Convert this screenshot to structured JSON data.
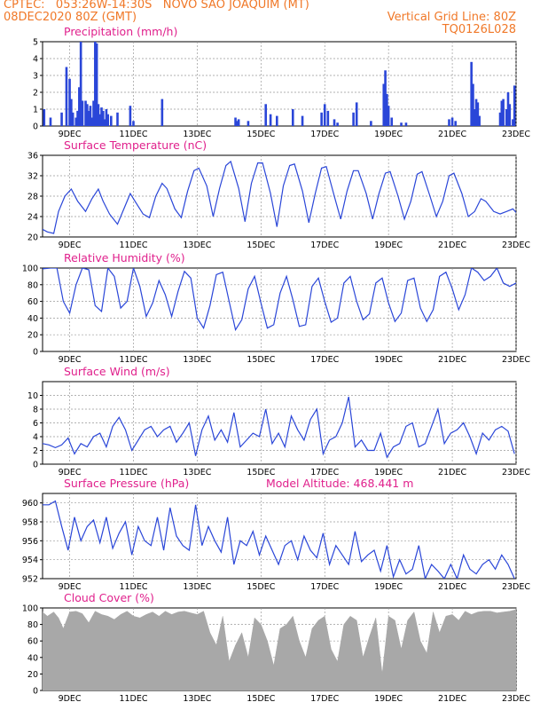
{
  "header": {
    "line1": "CPTEC:   053:26W-14:30S   NOVO SAO JOAQUIM (MT)",
    "line2": "08DEC2020 80Z (GMT)",
    "grid_note": "Vertical Grid Line: 80Z",
    "code": "TQ0126L028"
  },
  "colors": {
    "line": "#2a46d8",
    "bars": "#2a46d8",
    "cloud": "#a8a8a8",
    "title": "#e0208c",
    "header": "#f07828"
  },
  "chart_data": [
    {
      "id": "precip",
      "type": "bar",
      "title": "Precipitation (mm/h)",
      "ylim": [
        0,
        5
      ],
      "yticks": [
        0,
        1,
        2,
        3,
        4,
        5
      ],
      "xlim": [
        8.15,
        23
      ],
      "xticks": [
        "9DEC",
        "11DEC",
        "13DEC",
        "15DEC",
        "17DEC",
        "19DEC",
        "21DEC",
        "23DEC"
      ],
      "x": [
        8.2,
        8.4,
        8.75,
        8.9,
        9.0,
        9.05,
        9.1,
        9.2,
        9.25,
        9.3,
        9.35,
        9.4,
        9.5,
        9.55,
        9.6,
        9.65,
        9.7,
        9.75,
        9.8,
        9.85,
        9.9,
        9.95,
        10.0,
        10.05,
        10.1,
        10.15,
        10.2,
        10.3,
        10.5,
        10.9,
        11.0,
        11.9,
        14.2,
        14.25,
        14.3,
        14.6,
        15.15,
        15.3,
        15.5,
        16.0,
        16.3,
        16.9,
        17.0,
        17.1,
        17.3,
        17.4,
        17.9,
        18.0,
        18.45,
        18.85,
        18.9,
        18.95,
        19.0,
        19.1,
        19.4,
        19.55,
        20.9,
        21.0,
        21.1,
        21.6,
        21.65,
        21.7,
        21.75,
        21.8,
        21.85,
        22.5,
        22.55,
        22.6,
        22.7,
        22.75,
        22.8,
        22.9,
        22.95
      ],
      "values": [
        1.0,
        0.5,
        0.8,
        3.5,
        2.8,
        1.6,
        0.8,
        0.5,
        0.9,
        2.3,
        5.0,
        1.5,
        1.5,
        1.3,
        0.9,
        1.2,
        0.5,
        1.5,
        5.0,
        4.9,
        1.3,
        0.7,
        1.1,
        0.9,
        0.4,
        1.0,
        0.7,
        0.6,
        0.8,
        1.2,
        0.3,
        1.6,
        0.5,
        0.3,
        0.4,
        0.3,
        1.3,
        0.7,
        0.6,
        1.0,
        0.6,
        0.8,
        1.3,
        0.9,
        0.4,
        0.2,
        0.8,
        1.4,
        0.3,
        2.5,
        3.3,
        1.9,
        1.2,
        0.5,
        0.2,
        0.2,
        0.4,
        0.5,
        0.3,
        3.8,
        2.5,
        1.0,
        1.6,
        1.4,
        0.6,
        0.8,
        1.5,
        1.6,
        1.0,
        2.0,
        1.3,
        0.4,
        2.4
      ]
    },
    {
      "id": "temp",
      "type": "line",
      "title": "Surface Temperature (nC)",
      "ylim": [
        20,
        36
      ],
      "yticks": [
        20,
        24,
        28,
        32,
        36
      ],
      "xlim": [
        8.15,
        23
      ],
      "xticks": [
        "9DEC",
        "11DEC",
        "13DEC",
        "15DEC",
        "17DEC",
        "19DEC",
        "21DEC",
        "23DEC"
      ],
      "x": [
        8.15,
        8.3,
        8.5,
        8.65,
        8.85,
        9.05,
        9.25,
        9.5,
        9.7,
        9.9,
        10.05,
        10.25,
        10.5,
        10.7,
        10.9,
        11.05,
        11.3,
        11.5,
        11.7,
        11.9,
        12.05,
        12.3,
        12.5,
        12.7,
        12.9,
        13.05,
        13.3,
        13.5,
        13.7,
        13.9,
        14.05,
        14.3,
        14.5,
        14.7,
        14.9,
        15.05,
        15.3,
        15.5,
        15.7,
        15.9,
        16.05,
        16.3,
        16.5,
        16.7,
        16.9,
        17.05,
        17.3,
        17.5,
        17.7,
        17.9,
        18.05,
        18.3,
        18.5,
        18.7,
        18.9,
        19.05,
        19.3,
        19.5,
        19.7,
        19.9,
        20.05,
        20.3,
        20.5,
        20.7,
        20.9,
        21.05,
        21.3,
        21.5,
        21.7,
        21.9,
        22.05,
        22.3,
        22.5,
        22.7,
        22.9,
        23.0
      ],
      "values": [
        21.5,
        21.0,
        20.7,
        25.0,
        28.0,
        29.4,
        27.0,
        25.0,
        27.5,
        29.4,
        27.0,
        24.5,
        22.5,
        25.5,
        28.5,
        27.0,
        24.5,
        23.8,
        28.0,
        30.5,
        29.5,
        25.5,
        23.8,
        29.0,
        33.0,
        33.5,
        30.0,
        24.0,
        29.5,
        34.0,
        34.8,
        29.5,
        23.0,
        30.5,
        34.5,
        34.5,
        28.5,
        22.0,
        30.0,
        34.0,
        34.3,
        29.0,
        22.8,
        28.5,
        33.5,
        33.8,
        28.0,
        23.5,
        29.0,
        33.0,
        33.0,
        28.5,
        23.5,
        28.5,
        32.5,
        32.8,
        28.0,
        23.5,
        27.0,
        32.3,
        32.8,
        28.0,
        24.0,
        27.0,
        32.0,
        32.5,
        28.5,
        24.0,
        25.0,
        27.5,
        27.0,
        25.0,
        24.5,
        25.0,
        25.5,
        24.8
      ]
    },
    {
      "id": "rh",
      "type": "line",
      "title": "Relative Humidity (%)",
      "ylim": [
        0,
        100
      ],
      "yticks": [
        0,
        20,
        40,
        60,
        80,
        100
      ],
      "xlim": [
        8.15,
        23
      ],
      "xticks": [
        "9DEC",
        "11DEC",
        "13DEC",
        "15DEC",
        "17DEC",
        "19DEC",
        "21DEC",
        "23DEC"
      ],
      "x": [
        8.15,
        8.4,
        8.6,
        8.8,
        9.0,
        9.2,
        9.4,
        9.6,
        9.8,
        10.0,
        10.2,
        10.4,
        10.6,
        10.8,
        11.0,
        11.2,
        11.4,
        11.6,
        11.8,
        12.0,
        12.2,
        12.4,
        12.6,
        12.8,
        13.0,
        13.2,
        13.4,
        13.6,
        13.8,
        14.0,
        14.2,
        14.4,
        14.6,
        14.8,
        15.0,
        15.2,
        15.4,
        15.6,
        15.8,
        16.0,
        16.2,
        16.4,
        16.6,
        16.8,
        17.0,
        17.2,
        17.4,
        17.6,
        17.8,
        18.0,
        18.2,
        18.4,
        18.6,
        18.8,
        19.0,
        19.2,
        19.4,
        19.6,
        19.8,
        20.0,
        20.2,
        20.4,
        20.6,
        20.8,
        21.0,
        21.2,
        21.4,
        21.6,
        21.8,
        22.0,
        22.2,
        22.4,
        22.6,
        22.8,
        23.0
      ],
      "values": [
        99,
        100,
        100,
        60,
        46,
        80,
        100,
        98,
        55,
        48,
        100,
        90,
        52,
        60,
        100,
        78,
        42,
        58,
        85,
        68,
        42,
        72,
        96,
        88,
        40,
        28,
        55,
        92,
        95,
        60,
        26,
        38,
        75,
        90,
        58,
        28,
        32,
        70,
        90,
        62,
        30,
        32,
        78,
        88,
        60,
        35,
        40,
        82,
        90,
        60,
        38,
        45,
        82,
        88,
        58,
        36,
        46,
        85,
        88,
        52,
        36,
        50,
        90,
        95,
        75,
        50,
        68,
        100,
        95,
        85,
        90,
        100,
        82,
        78,
        82
      ]
    },
    {
      "id": "wind",
      "type": "line",
      "title": "Surface Wind (m/s)",
      "ylim": [
        0,
        12
      ],
      "yticks": [
        0,
        2,
        4,
        6,
        8,
        10
      ],
      "xlim": [
        8.15,
        23
      ],
      "xticks": [
        "9DEC",
        "11DEC",
        "13DEC",
        "15DEC",
        "17DEC",
        "19DEC",
        "21DEC",
        "23DEC"
      ],
      "x": [
        8.15,
        8.35,
        8.55,
        8.75,
        8.95,
        9.15,
        9.35,
        9.55,
        9.75,
        9.95,
        10.15,
        10.35,
        10.55,
        10.75,
        10.95,
        11.15,
        11.35,
        11.55,
        11.75,
        11.95,
        12.15,
        12.35,
        12.55,
        12.75,
        12.95,
        13.15,
        13.35,
        13.55,
        13.75,
        13.95,
        14.15,
        14.35,
        14.55,
        14.75,
        14.95,
        15.15,
        15.35,
        15.55,
        15.75,
        15.95,
        16.15,
        16.35,
        16.55,
        16.75,
        16.95,
        17.15,
        17.35,
        17.55,
        17.75,
        17.95,
        18.15,
        18.35,
        18.55,
        18.75,
        18.95,
        19.15,
        19.35,
        19.55,
        19.75,
        19.95,
        20.15,
        20.35,
        20.55,
        20.75,
        20.95,
        21.15,
        21.35,
        21.55,
        21.75,
        21.95,
        22.15,
        22.35,
        22.55,
        22.75,
        22.95
      ],
      "values": [
        3.0,
        2.8,
        2.4,
        2.8,
        3.8,
        1.5,
        3.0,
        2.5,
        4.0,
        4.5,
        2.5,
        5.5,
        6.8,
        5.0,
        2.0,
        3.5,
        5.0,
        5.5,
        4.0,
        5.0,
        5.5,
        3.2,
        4.5,
        6.0,
        1.2,
        5.0,
        7.0,
        3.5,
        5.0,
        3.2,
        7.5,
        2.5,
        3.5,
        4.5,
        4.0,
        8.0,
        3.0,
        4.5,
        2.5,
        7.0,
        5.0,
        3.5,
        6.5,
        8.0,
        1.5,
        3.5,
        4.0,
        6.0,
        9.8,
        2.5,
        3.5,
        2.0,
        2.0,
        4.5,
        1.0,
        2.5,
        3.0,
        5.5,
        6.0,
        2.5,
        3.0,
        5.5,
        8.0,
        3.0,
        4.5,
        5.0,
        6.0,
        4.0,
        1.5,
        4.5,
        3.5,
        5.0,
        5.5,
        4.8,
        1.5
      ]
    },
    {
      "id": "pressure",
      "type": "line",
      "title": "Surface Pressure (hPa)",
      "annotation": "Model Altitude: 468.441 m",
      "ylim": [
        952,
        961
      ],
      "yticks": [
        952,
        954,
        956,
        958,
        960
      ],
      "xlim": [
        8.15,
        23
      ],
      "xticks": [
        "9DEC",
        "11DEC",
        "13DEC",
        "15DEC",
        "17DEC",
        "19DEC",
        "21DEC",
        "23DEC"
      ],
      "x": [
        8.15,
        8.35,
        8.55,
        8.75,
        8.95,
        9.15,
        9.35,
        9.55,
        9.75,
        9.95,
        10.15,
        10.35,
        10.55,
        10.75,
        10.95,
        11.15,
        11.35,
        11.55,
        11.75,
        11.95,
        12.15,
        12.35,
        12.55,
        12.75,
        12.95,
        13.15,
        13.35,
        13.55,
        13.75,
        13.95,
        14.15,
        14.35,
        14.55,
        14.75,
        14.95,
        15.15,
        15.35,
        15.55,
        15.75,
        15.95,
        16.15,
        16.35,
        16.55,
        16.75,
        16.95,
        17.15,
        17.35,
        17.55,
        17.75,
        17.95,
        18.15,
        18.35,
        18.55,
        18.75,
        18.95,
        19.15,
        19.35,
        19.55,
        19.75,
        19.95,
        20.15,
        20.35,
        20.55,
        20.75,
        20.95,
        21.15,
        21.35,
        21.55,
        21.75,
        21.95,
        22.15,
        22.35,
        22.55,
        22.75,
        22.95
      ],
      "values": [
        959.8,
        959.8,
        960.2,
        957.5,
        955.0,
        958.5,
        956.0,
        957.5,
        958.2,
        955.8,
        958.5,
        955.2,
        956.8,
        958.0,
        954.5,
        957.5,
        956.0,
        955.5,
        958.5,
        955.0,
        959.5,
        956.5,
        955.5,
        955.0,
        959.8,
        955.5,
        957.5,
        956.0,
        954.8,
        958.5,
        953.5,
        956.0,
        955.5,
        957.0,
        954.5,
        956.5,
        955.0,
        953.5,
        955.5,
        956.0,
        954.0,
        956.5,
        955.0,
        954.2,
        956.8,
        953.5,
        955.5,
        954.5,
        953.5,
        957.0,
        953.8,
        954.5,
        955.0,
        952.8,
        955.5,
        952.2,
        954.0,
        952.5,
        953.0,
        955.5,
        952.0,
        953.5,
        952.8,
        952.0,
        953.5,
        952.0,
        954.5,
        953.0,
        952.5,
        953.5,
        954.0,
        953.0,
        954.5,
        953.5,
        952.0
      ]
    },
    {
      "id": "cloud",
      "type": "area",
      "title": "Cloud Cover (%)",
      "ylim": [
        0,
        100
      ],
      "yticks": [
        0,
        20,
        40,
        60,
        80,
        100
      ],
      "xlim": [
        8.15,
        23
      ],
      "xticks": [
        "9DEC",
        "11DEC",
        "13DEC",
        "15DEC",
        "17DEC",
        "19DEC",
        "21DEC",
        "23DEC"
      ],
      "x": [
        8.15,
        8.3,
        8.5,
        8.65,
        8.8,
        9.0,
        9.2,
        9.4,
        9.6,
        9.8,
        10.0,
        10.2,
        10.4,
        10.6,
        10.8,
        11.0,
        11.2,
        11.4,
        11.6,
        11.8,
        12.0,
        12.2,
        12.4,
        12.6,
        12.8,
        13.0,
        13.2,
        13.4,
        13.6,
        13.8,
        14.0,
        14.2,
        14.4,
        14.6,
        14.8,
        15.0,
        15.2,
        15.4,
        15.6,
        15.8,
        16.0,
        16.2,
        16.4,
        16.6,
        16.8,
        17.0,
        17.2,
        17.4,
        17.6,
        17.8,
        18.0,
        18.2,
        18.4,
        18.6,
        18.8,
        19.0,
        19.2,
        19.4,
        19.6,
        19.8,
        20.0,
        20.2,
        20.4,
        20.6,
        20.8,
        21.0,
        21.2,
        21.4,
        21.6,
        21.8,
        22.0,
        22.2,
        22.4,
        22.6,
        22.8,
        23.0
      ],
      "values": [
        95,
        90,
        95,
        88,
        75,
        95,
        96,
        93,
        82,
        96,
        92,
        90,
        86,
        92,
        96,
        90,
        88,
        92,
        95,
        90,
        96,
        92,
        95,
        96,
        94,
        92,
        96,
        70,
        55,
        90,
        35,
        55,
        70,
        40,
        88,
        80,
        60,
        30,
        75,
        80,
        90,
        60,
        40,
        75,
        85,
        90,
        50,
        35,
        80,
        90,
        85,
        40,
        65,
        88,
        20,
        90,
        85,
        50,
        85,
        95,
        60,
        45,
        95,
        70,
        90,
        92,
        85,
        96,
        92,
        95,
        96,
        96,
        94,
        95,
        96,
        98
      ]
    }
  ]
}
